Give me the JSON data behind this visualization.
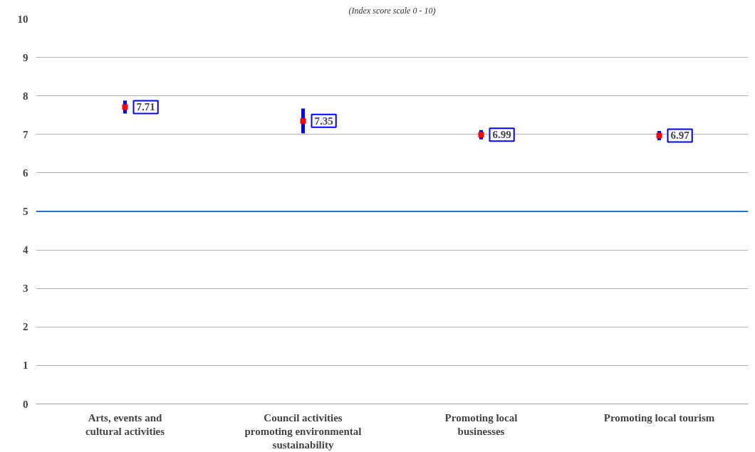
{
  "chart_data": {
    "type": "scatter",
    "subtitle": "(Index score scale 0 - 10)",
    "categories": [
      "Arts, events and cultural activities",
      "Council activities promoting environmental sustainability",
      "Promoting local businesses",
      "Promoting local tourism"
    ],
    "series": [
      {
        "color": "#ff0000",
        "values": [
          7.71,
          7.35,
          6.99,
          6.97
        ],
        "errors": [
          0.17,
          0.32,
          0.12,
          0.12
        ]
      }
    ],
    "ylim": [
      0,
      10
    ],
    "yticks": [
      0,
      1,
      2,
      3,
      4,
      5,
      6,
      7,
      8,
      9,
      10
    ],
    "grid": "y",
    "marker": "square",
    "data_labels": true,
    "ref_lines": [
      {
        "axis": "y",
        "value": 5,
        "color": "#2e75b6"
      }
    ]
  }
}
